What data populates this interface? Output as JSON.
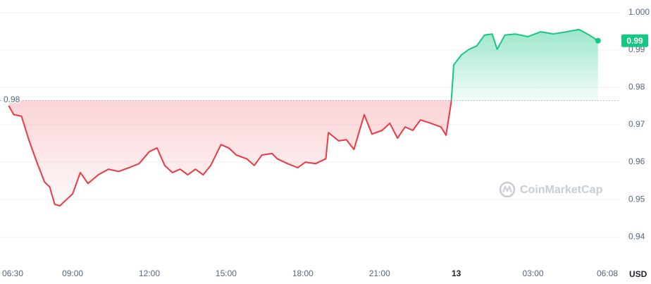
{
  "chart_data": {
    "type": "line",
    "x": [
      6.5,
      6.7,
      7.0,
      7.3,
      7.6,
      7.9,
      8.1,
      8.3,
      8.5,
      8.7,
      9.0,
      9.3,
      9.6,
      10.0,
      10.4,
      10.8,
      11.2,
      11.6,
      12.0,
      12.3,
      12.6,
      12.9,
      13.2,
      13.5,
      13.8,
      14.1,
      14.4,
      14.8,
      15.1,
      15.4,
      15.8,
      16.1,
      16.4,
      16.8,
      17.0,
      17.4,
      17.8,
      18.1,
      18.5,
      18.9,
      19.0,
      19.4,
      19.7,
      20.0,
      20.4,
      20.7,
      21.1,
      21.4,
      21.7,
      22.0,
      22.3,
      22.6,
      23.0,
      23.4,
      23.6,
      23.8,
      23.9,
      24.2,
      24.5,
      24.8,
      25.1,
      25.4,
      25.6,
      25.9,
      26.3,
      26.8,
      27.3,
      27.8,
      28.3,
      28.8,
      29.2,
      29.54
    ],
    "values": [
      0.9751,
      0.9727,
      0.9723,
      0.9657,
      0.96,
      0.9547,
      0.9534,
      0.9487,
      0.9483,
      0.9496,
      0.9515,
      0.9572,
      0.9543,
      0.9566,
      0.9581,
      0.9575,
      0.9585,
      0.9596,
      0.9628,
      0.9638,
      0.9591,
      0.9572,
      0.9581,
      0.9566,
      0.9581,
      0.9566,
      0.9591,
      0.9647,
      0.9638,
      0.9619,
      0.9609,
      0.9591,
      0.9619,
      0.9623,
      0.9609,
      0.9596,
      0.9585,
      0.96,
      0.9596,
      0.9609,
      0.9679,
      0.9657,
      0.966,
      0.9634,
      0.9727,
      0.9675,
      0.9685,
      0.9704,
      0.9664,
      0.9694,
      0.9685,
      0.9713,
      0.9704,
      0.9694,
      0.9672,
      0.976,
      0.986,
      0.9887,
      0.9902,
      0.9911,
      0.994,
      0.9943,
      0.9902,
      0.994,
      0.9943,
      0.9936,
      0.9949,
      0.9943,
      0.9949,
      0.9955,
      0.994,
      0.9925
    ],
    "up_color": "#16c784",
    "down_color": "#ea3943",
    "baseline": {
      "value": 0.9765,
      "label": "0.98"
    },
    "current_price": {
      "value": 0.9925,
      "label": "0.99"
    },
    "xlim": [
      6.16,
      30.4
    ],
    "xticks": [
      {
        "value": 6.5,
        "label": "06:30"
      },
      {
        "value": 9,
        "label": "09:00"
      },
      {
        "value": 12,
        "label": "12:00"
      },
      {
        "value": 15,
        "label": "15:00"
      },
      {
        "value": 18,
        "label": "18:00"
      },
      {
        "value": 21,
        "label": "21:00"
      },
      {
        "value": 24,
        "label": "13"
      },
      {
        "value": 27,
        "label": "03:00"
      },
      {
        "value": 30.13,
        "label": "06:08"
      }
    ],
    "ylim": [
      0.937,
      1.0034
    ],
    "yticks": [
      0.94,
      0.95,
      0.96,
      0.97,
      0.98,
      0.99,
      {
        "value": 1,
        "label": "1.000"
      }
    ],
    "grid": true,
    "currency": "USD",
    "watermark": "CoinMarketCap"
  }
}
